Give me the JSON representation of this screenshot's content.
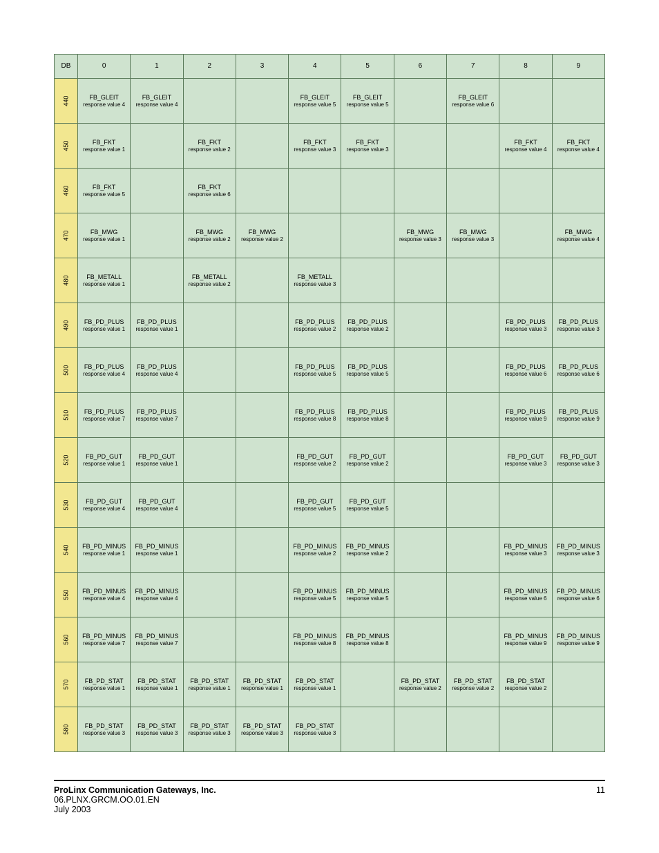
{
  "colors": {
    "header_bg": "#cfe3cf",
    "rowhdr_bg": "#f2e790",
    "cell_bg": "#cfe3cf",
    "border": "#5a7a5a",
    "footer_rule": "#000000"
  },
  "fonts": {
    "family": "Arial",
    "header_size_pt": 8,
    "cell_size_pt": 7,
    "footer_size_pt": 10
  },
  "table": {
    "header": [
      "DB",
      "0",
      "1",
      "2",
      "3",
      "4",
      "5",
      "6",
      "7",
      "8",
      "9"
    ],
    "row_labels": [
      "440",
      "450",
      "460",
      "470",
      "480",
      "490",
      "500",
      "510",
      "520",
      "530",
      "540",
      "550",
      "560",
      "570",
      "580"
    ],
    "rows": [
      [
        {
          "t": "FB_GLEIT",
          "s": "response value 4"
        },
        {
          "t": "FB_GLEIT",
          "s": "response value 4"
        },
        null,
        null,
        {
          "t": "FB_GLEIT",
          "s": "response value 5"
        },
        {
          "t": "FB_GLEIT",
          "s": "response value 5"
        },
        null,
        {
          "t": "FB_GLEIT",
          "s": "response value 6"
        },
        null,
        null
      ],
      [
        {
          "t": "FB_FKT",
          "s": "response value 1"
        },
        null,
        {
          "t": "FB_FKT",
          "s": "response value 2"
        },
        null,
        {
          "t": "FB_FKT",
          "s": "response value 3"
        },
        {
          "t": "FB_FKT",
          "s": "response value 3"
        },
        null,
        null,
        {
          "t": "FB_FKT",
          "s": "response value 4"
        },
        {
          "t": "FB_FKT",
          "s": "response value 4"
        }
      ],
      [
        {
          "t": "FB_FKT",
          "s": "response value 5"
        },
        null,
        {
          "t": "FB_FKT",
          "s": "response value 6"
        },
        null,
        null,
        null,
        null,
        null,
        null,
        null
      ],
      [
        {
          "t": "FB_MWG",
          "s": "response value 1"
        },
        null,
        {
          "t": "FB_MWG",
          "s": "response value 2"
        },
        {
          "t": "FB_MWG",
          "s": "response value 2"
        },
        null,
        null,
        {
          "t": "FB_MWG",
          "s": "response value 3"
        },
        {
          "t": "FB_MWG",
          "s": "response value 3"
        },
        null,
        {
          "t": "FB_MWG",
          "s": "response value 4"
        }
      ],
      [
        {
          "t": "FB_METALL",
          "s": "response value 1"
        },
        null,
        {
          "t": "FB_METALL",
          "s": "response value 2"
        },
        null,
        {
          "t": "FB_METALL",
          "s": "response value 3"
        },
        null,
        null,
        null,
        null,
        null
      ],
      [
        {
          "t": "FB_PD_PLUS",
          "s": "response value 1"
        },
        {
          "t": "FB_PD_PLUS",
          "s": "response value 1"
        },
        null,
        null,
        {
          "t": "FB_PD_PLUS",
          "s": "response value 2"
        },
        {
          "t": "FB_PD_PLUS",
          "s": "response value 2"
        },
        null,
        null,
        {
          "t": "FB_PD_PLUS",
          "s": "response value 3"
        },
        {
          "t": "FB_PD_PLUS",
          "s": "response value 3"
        }
      ],
      [
        {
          "t": "FB_PD_PLUS",
          "s": "response value 4"
        },
        {
          "t": "FB_PD_PLUS",
          "s": "response value 4"
        },
        null,
        null,
        {
          "t": "FB_PD_PLUS",
          "s": "response value 5"
        },
        {
          "t": "FB_PD_PLUS",
          "s": "response value 5"
        },
        null,
        null,
        {
          "t": "FB_PD_PLUS",
          "s": "response value 6"
        },
        {
          "t": "FB_PD_PLUS",
          "s": "response value 6"
        }
      ],
      [
        {
          "t": "FB_PD_PLUS",
          "s": "response value 7"
        },
        {
          "t": "FB_PD_PLUS",
          "s": "response value 7"
        },
        null,
        null,
        {
          "t": "FB_PD_PLUS",
          "s": "response value 8"
        },
        {
          "t": "FB_PD_PLUS",
          "s": "response value 8"
        },
        null,
        null,
        {
          "t": "FB_PD_PLUS",
          "s": "response value 9"
        },
        {
          "t": "FB_PD_PLUS",
          "s": "response value 9"
        }
      ],
      [
        {
          "t": "FB_PD_GUT",
          "s": "response value 1"
        },
        {
          "t": "FB_PD_GUT",
          "s": "response value 1"
        },
        null,
        null,
        {
          "t": "FB_PD_GUT",
          "s": "response value 2"
        },
        {
          "t": "FB_PD_GUT",
          "s": "response value 2"
        },
        null,
        null,
        {
          "t": "FB_PD_GUT",
          "s": "response value 3"
        },
        {
          "t": "FB_PD_GUT",
          "s": "response value 3"
        }
      ],
      [
        {
          "t": "FB_PD_GUT",
          "s": "response value 4"
        },
        {
          "t": "FB_PD_GUT",
          "s": "response value 4"
        },
        null,
        null,
        {
          "t": "FB_PD_GUT",
          "s": "response value 5"
        },
        {
          "t": "FB_PD_GUT",
          "s": "response value 5"
        },
        null,
        null,
        null,
        null
      ],
      [
        {
          "t": "FB_PD_MINUS",
          "s": "response value 1"
        },
        {
          "t": "FB_PD_MINUS",
          "s": "response value 1"
        },
        null,
        null,
        {
          "t": "FB_PD_MINUS",
          "s": "response value 2"
        },
        {
          "t": "FB_PD_MINUS",
          "s": "response value 2"
        },
        null,
        null,
        {
          "t": "FB_PD_MINUS",
          "s": "response value 3"
        },
        {
          "t": "FB_PD_MINUS",
          "s": "response value 3"
        }
      ],
      [
        {
          "t": "FB_PD_MINUS",
          "s": "response value 4"
        },
        {
          "t": "FB_PD_MINUS",
          "s": "response value 4"
        },
        null,
        null,
        {
          "t": "FB_PD_MINUS",
          "s": "response value 5"
        },
        {
          "t": "FB_PD_MINUS",
          "s": "response value 5"
        },
        null,
        null,
        {
          "t": "FB_PD_MINUS",
          "s": "response value 6"
        },
        {
          "t": "FB_PD_MINUS",
          "s": "response value 6"
        }
      ],
      [
        {
          "t": "FB_PD_MINUS",
          "s": "response value 7"
        },
        {
          "t": "FB_PD_MINUS",
          "s": "response value 7"
        },
        null,
        null,
        {
          "t": "FB_PD_MINUS",
          "s": "response value 8"
        },
        {
          "t": "FB_PD_MINUS",
          "s": "response value 8"
        },
        null,
        null,
        {
          "t": "FB_PD_MINUS",
          "s": "response value 9"
        },
        {
          "t": "FB_PD_MINUS",
          "s": "response value 9"
        }
      ],
      [
        {
          "t": "FB_PD_STAT",
          "s": "response value 1"
        },
        {
          "t": "FB_PD_STAT",
          "s": "response value 1"
        },
        {
          "t": "FB_PD_STAT",
          "s": "response value 1"
        },
        {
          "t": "FB_PD_STAT",
          "s": "response value 1"
        },
        {
          "t": "FB_PD_STAT",
          "s": "response value 1"
        },
        null,
        {
          "t": "FB_PD_STAT",
          "s": "response value 2"
        },
        {
          "t": "FB_PD_STAT",
          "s": "response value 2"
        },
        {
          "t": "FB_PD_STAT",
          "s": "response value 2"
        },
        null
      ],
      [
        {
          "t": "FB_PD_STAT",
          "s": "response value 3"
        },
        {
          "t": "FB_PD_STAT",
          "s": "response value 3"
        },
        {
          "t": "FB_PD_STAT",
          "s": "response value 3"
        },
        {
          "t": "FB_PD_STAT",
          "s": "response value 3"
        },
        {
          "t": "FB_PD_STAT",
          "s": "response value 3"
        },
        null,
        null,
        null,
        null,
        null
      ]
    ]
  },
  "footer": {
    "company": "ProLinx Communication Gateways, Inc.",
    "page": "11",
    "docref": "06.PLNX.GRCM.OO.01.EN",
    "date": "July 2003"
  }
}
